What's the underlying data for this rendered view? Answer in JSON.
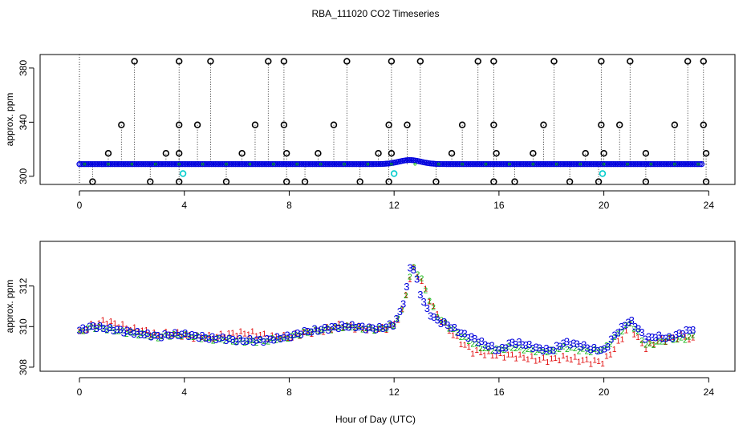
{
  "title": "RBA_111020  CO2 Timeseries",
  "xlabel": "Hour of Day (UTC)",
  "colors": {
    "black": "#000000",
    "blue": "#0000dd",
    "red": "#e00000",
    "green": "#00b000",
    "cyan": "#00cccc"
  },
  "chart_data": [
    {
      "type": "scatter",
      "panel": "top",
      "ylabel": "approx. ppm",
      "xlim": [
        -1.5,
        25
      ],
      "ylim": [
        294,
        390
      ],
      "xticks": [
        0,
        4,
        8,
        12,
        16,
        20,
        24
      ],
      "yticks": [
        300,
        340,
        380
      ],
      "series": [
        {
          "marker": "blue-circle",
          "color": "#0000dd",
          "x_range": [
            0,
            23.8
          ],
          "y_baseline": 309,
          "bump": {
            "x": 12.6,
            "y": 312
          }
        },
        {
          "marker": "black-circle-high",
          "color": "#000000",
          "x": [
            2.1,
            3.8,
            5.0,
            7.2,
            7.8,
            10.2,
            11.9,
            13.0,
            15.2,
            15.8,
            18.1,
            19.9,
            21.0,
            23.2,
            23.8
          ],
          "y": [
            385,
            385,
            385,
            385,
            385,
            385,
            385,
            385,
            385,
            385,
            385,
            385,
            385,
            385,
            385
          ]
        },
        {
          "marker": "black-circle-mid",
          "color": "#000000",
          "x": [
            1.6,
            3.8,
            4.5,
            6.7,
            7.8,
            9.7,
            11.8,
            12.5,
            14.6,
            15.8,
            17.7,
            19.9,
            20.6,
            22.7,
            23.8
          ],
          "y": [
            338,
            338,
            338,
            338,
            338,
            338,
            338,
            338,
            338,
            338,
            338,
            338,
            338,
            338,
            338
          ]
        },
        {
          "marker": "black-circle-low",
          "color": "#000000",
          "x": [
            1.1,
            3.3,
            3.8,
            6.2,
            7.9,
            9.1,
            11.4,
            11.9,
            14.2,
            15.9,
            17.3,
            19.3,
            20.0,
            21.6,
            23.9
          ],
          "y": [
            317,
            317,
            317,
            317,
            317,
            317,
            317,
            317,
            317,
            317,
            317,
            317,
            317,
            317,
            317
          ]
        },
        {
          "marker": "black-circle-bottom",
          "color": "#000000",
          "x": [
            0.5,
            2.7,
            3.8,
            5.6,
            7.9,
            8.6,
            10.7,
            11.8,
            13.6,
            15.8,
            16.6,
            18.7,
            19.8,
            21.6,
            23.9
          ],
          "y": [
            296,
            296,
            296,
            296,
            296,
            296,
            296,
            296,
            296,
            296,
            296,
            296,
            296,
            296,
            296
          ]
        },
        {
          "marker": "cyan-circle",
          "color": "#00cccc",
          "x": [
            3.95,
            12.0,
            19.95
          ],
          "y": [
            302,
            302,
            302
          ]
        }
      ]
    },
    {
      "type": "scatter",
      "panel": "bottom",
      "ylabel": "approx. ppm",
      "xlim": [
        -1.5,
        25
      ],
      "ylim": [
        307.8,
        314.2
      ],
      "xticks": [
        0,
        4,
        8,
        12,
        16,
        20,
        24
      ],
      "yticks": [
        308,
        310,
        312
      ],
      "series": [
        {
          "marker": "3",
          "color": "#0000dd",
          "x": [
            0,
            0.5,
            1.0,
            1.5,
            2.0,
            2.5,
            3.0,
            3.5,
            4.0,
            4.5,
            5.0,
            5.5,
            6.0,
            6.5,
            7.0,
            7.5,
            8.0,
            8.5,
            9.0,
            9.5,
            10.0,
            10.5,
            11.0,
            11.5,
            12.0,
            12.3,
            12.5,
            12.65,
            12.8,
            13.0,
            13.3,
            13.6,
            14.0,
            14.5,
            15.0,
            15.5,
            16.0,
            16.5,
            17.0,
            17.5,
            18.0,
            18.5,
            19.0,
            19.5,
            20.0,
            20.5,
            21.0,
            21.3,
            21.6,
            22.0,
            22.5,
            23.0,
            23.5
          ],
          "y": [
            309.8,
            310.0,
            309.9,
            309.8,
            309.7,
            309.6,
            309.5,
            309.6,
            309.6,
            309.5,
            309.4,
            309.4,
            309.3,
            309.3,
            309.3,
            309.4,
            309.5,
            309.7,
            309.8,
            309.9,
            310.0,
            310.0,
            309.9,
            309.9,
            310.1,
            310.9,
            312.0,
            313.2,
            312.6,
            311.6,
            310.7,
            310.3,
            310.1,
            309.7,
            309.4,
            309.1,
            308.8,
            309.2,
            309.1,
            308.9,
            308.8,
            309.2,
            309.1,
            308.9,
            308.8,
            309.7,
            310.3,
            309.9,
            309.4,
            309.5,
            309.4,
            309.7,
            309.9
          ]
        },
        {
          "marker": "1",
          "color": "#e00000",
          "x": [
            0,
            0.5,
            1.0,
            1.5,
            2.0,
            2.5,
            3.0,
            3.5,
            4.0,
            4.5,
            5.0,
            5.5,
            6.0,
            6.5,
            7.0,
            7.5,
            8.0,
            8.5,
            9.0,
            9.5,
            10.0,
            10.5,
            11.0,
            11.5,
            12.0,
            12.3,
            12.5,
            12.7,
            13.0,
            13.3,
            13.6,
            14.0,
            14.5,
            15.0,
            15.5,
            16.0,
            16.5,
            17.0,
            17.5,
            18.0,
            18.5,
            19.0,
            19.5,
            20.0,
            20.5,
            21.0,
            21.3,
            21.6,
            22.0,
            22.5,
            23.0,
            23.5
          ],
          "y": [
            309.7,
            310.1,
            310.3,
            310.1,
            309.9,
            309.8,
            309.6,
            309.7,
            309.6,
            309.5,
            309.5,
            309.6,
            309.7,
            309.7,
            309.6,
            309.5,
            309.5,
            309.7,
            309.8,
            309.9,
            310.1,
            310.0,
            309.9,
            309.9,
            310.1,
            310.8,
            311.9,
            312.9,
            312.4,
            311.5,
            310.7,
            310.0,
            309.3,
            308.8,
            308.7,
            308.6,
            308.6,
            308.5,
            308.4,
            308.4,
            308.5,
            308.4,
            308.3,
            308.3,
            309.1,
            310.1,
            309.4,
            309.0,
            309.3,
            309.4,
            309.6,
            309.3
          ]
        },
        {
          "marker": "2",
          "color": "#00b000",
          "x": [
            0,
            0.5,
            1.0,
            1.5,
            2.0,
            2.5,
            3.0,
            3.5,
            4.0,
            4.5,
            5.0,
            5.5,
            6.0,
            6.5,
            7.0,
            7.5,
            8.0,
            8.5,
            9.0,
            9.5,
            10.0,
            10.5,
            11.0,
            11.5,
            12.0,
            12.3,
            12.5,
            12.7,
            13.0,
            13.3,
            13.6,
            14.0,
            14.5,
            15.0,
            15.5,
            16.0,
            16.5,
            17.0,
            17.5,
            18.0,
            18.5,
            19.0,
            19.5,
            20.0,
            20.5,
            21.0,
            21.3,
            21.6,
            22.0,
            22.5,
            23.0,
            23.5
          ],
          "y": [
            309.8,
            310.0,
            309.9,
            309.8,
            309.7,
            309.6,
            309.5,
            309.6,
            309.6,
            309.5,
            309.4,
            309.4,
            309.3,
            309.3,
            309.3,
            309.4,
            309.5,
            309.7,
            309.8,
            309.9,
            310.0,
            310.0,
            309.9,
            309.9,
            310.1,
            310.8,
            311.9,
            313.0,
            312.5,
            311.5,
            310.6,
            310.1,
            309.6,
            309.2,
            308.9,
            308.9,
            309.0,
            308.9,
            308.8,
            308.8,
            309.0,
            308.9,
            308.8,
            308.9,
            309.6,
            310.2,
            309.7,
            309.1,
            309.2,
            309.4,
            309.4,
            309.6
          ]
        }
      ]
    }
  ]
}
